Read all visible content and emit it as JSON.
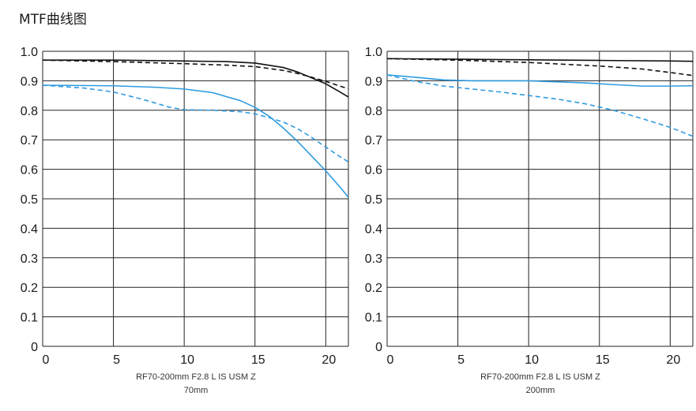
{
  "page": {
    "title": "MTF曲线图"
  },
  "chart_data": [
    {
      "type": "line",
      "caption_line1": "RF70-200mm F2.8 L IS USM Z",
      "caption_line2": "70mm",
      "xlim": [
        0,
        21.6
      ],
      "ylim": [
        0,
        1.0
      ],
      "x_ticks": [
        "0",
        "5",
        "10",
        "15",
        "20"
      ],
      "y_ticks": [
        "1.0",
        "0.9",
        "0.8",
        "0.7",
        "0.6",
        "0.5",
        "0.4",
        "0.3",
        "0.2",
        "0.1",
        "0"
      ],
      "grid": true,
      "series": [
        {
          "color": "#111111",
          "style": "solid",
          "points": [
            [
              0,
              0.97
            ],
            [
              5,
              0.97
            ],
            [
              10,
              0.967
            ],
            [
              13,
              0.965
            ],
            [
              15,
              0.96
            ],
            [
              17,
              0.945
            ],
            [
              18,
              0.93
            ],
            [
              19,
              0.91
            ],
            [
              20,
              0.89
            ],
            [
              21,
              0.862
            ],
            [
              21.6,
              0.845
            ]
          ]
        },
        {
          "color": "#111111",
          "style": "dashed",
          "points": [
            [
              0,
              0.97
            ],
            [
              5,
              0.965
            ],
            [
              10,
              0.958
            ],
            [
              13,
              0.953
            ],
            [
              15,
              0.948
            ],
            [
              17,
              0.935
            ],
            [
              18,
              0.925
            ],
            [
              19,
              0.912
            ],
            [
              20,
              0.898
            ],
            [
              21,
              0.882
            ],
            [
              21.6,
              0.873
            ]
          ]
        },
        {
          "color": "#2f9be0",
          "style": "solid",
          "points": [
            [
              0,
              0.885
            ],
            [
              5,
              0.883
            ],
            [
              8,
              0.878
            ],
            [
              10,
              0.872
            ],
            [
              12,
              0.86
            ],
            [
              14,
              0.832
            ],
            [
              15,
              0.81
            ],
            [
              16,
              0.78
            ],
            [
              17,
              0.74
            ],
            [
              18,
              0.695
            ],
            [
              19,
              0.645
            ],
            [
              20,
              0.595
            ],
            [
              21,
              0.54
            ],
            [
              21.6,
              0.505
            ]
          ]
        },
        {
          "color": "#2f9be0",
          "style": "dashed",
          "points": [
            [
              0,
              0.885
            ],
            [
              3,
              0.875
            ],
            [
              5,
              0.862
            ],
            [
              7,
              0.838
            ],
            [
              9,
              0.81
            ],
            [
              10,
              0.802
            ],
            [
              12,
              0.8
            ],
            [
              14,
              0.795
            ],
            [
              15,
              0.788
            ],
            [
              16,
              0.775
            ],
            [
              17,
              0.76
            ],
            [
              18,
              0.738
            ],
            [
              19,
              0.708
            ],
            [
              20,
              0.675
            ],
            [
              21,
              0.643
            ],
            [
              21.6,
              0.625
            ]
          ]
        }
      ]
    },
    {
      "type": "line",
      "caption_line1": "RF70-200mm F2.8 L IS USM Z",
      "caption_line2": "200mm",
      "xlim": [
        0,
        21.6
      ],
      "ylim": [
        0,
        1.0
      ],
      "x_ticks": [
        "0",
        "5",
        "10",
        "15",
        "20"
      ],
      "y_ticks": [
        "1.0",
        "0.9",
        "0.8",
        "0.7",
        "0.6",
        "0.5",
        "0.4",
        "0.3",
        "0.2",
        "0.1",
        "0"
      ],
      "grid": true,
      "series": [
        {
          "color": "#111111",
          "style": "solid",
          "points": [
            [
              0,
              0.975
            ],
            [
              5,
              0.973
            ],
            [
              10,
              0.971
            ],
            [
              15,
              0.969
            ],
            [
              20,
              0.967
            ],
            [
              21.6,
              0.966
            ]
          ]
        },
        {
          "color": "#111111",
          "style": "dashed",
          "points": [
            [
              0,
              0.975
            ],
            [
              5,
              0.97
            ],
            [
              10,
              0.962
            ],
            [
              15,
              0.95
            ],
            [
              18,
              0.94
            ],
            [
              20,
              0.928
            ],
            [
              21.6,
              0.918
            ]
          ]
        },
        {
          "color": "#2f9be0",
          "style": "solid",
          "points": [
            [
              0,
              0.92
            ],
            [
              2,
              0.912
            ],
            [
              4,
              0.903
            ],
            [
              6,
              0.9
            ],
            [
              10,
              0.9
            ],
            [
              14,
              0.893
            ],
            [
              16,
              0.887
            ],
            [
              18,
              0.882
            ],
            [
              20,
              0.882
            ],
            [
              21.6,
              0.883
            ]
          ]
        },
        {
          "color": "#2f9be0",
          "style": "dashed",
          "points": [
            [
              0,
              0.92
            ],
            [
              2,
              0.898
            ],
            [
              4,
              0.882
            ],
            [
              6,
              0.872
            ],
            [
              8,
              0.862
            ],
            [
              10,
              0.85
            ],
            [
              12,
              0.838
            ],
            [
              14,
              0.822
            ],
            [
              16,
              0.8
            ],
            [
              18,
              0.772
            ],
            [
              20,
              0.742
            ],
            [
              21.6,
              0.712
            ]
          ]
        }
      ]
    }
  ]
}
